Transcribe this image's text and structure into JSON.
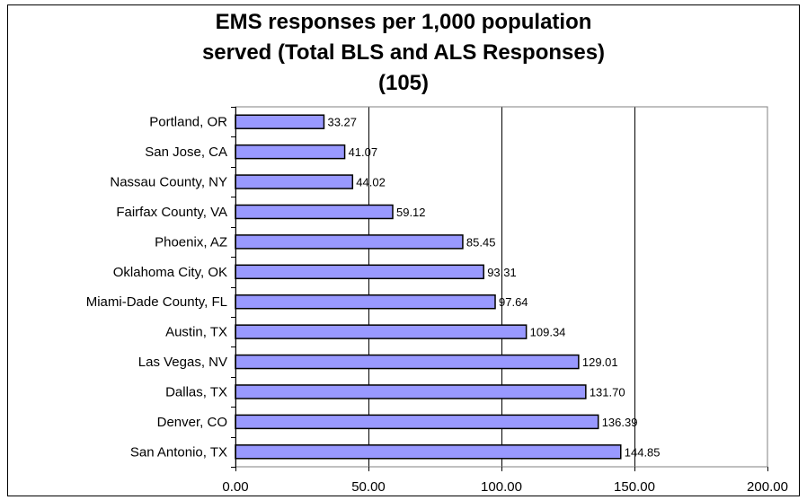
{
  "chart_data": {
    "type": "bar",
    "orientation": "horizontal",
    "title_lines": [
      "EMS responses per 1,000 population",
      "served (Total BLS and ALS Responses)",
      "(105)"
    ],
    "categories": [
      "Portland, OR",
      "San Jose, CA",
      "Nassau County, NY",
      "Fairfax County, VA",
      "Phoenix, AZ",
      "Oklahoma City, OK",
      "Miami-Dade County, FL",
      "Austin, TX",
      "Las Vegas, NV",
      "Dallas, TX",
      "Denver, CO",
      "San Antonio, TX"
    ],
    "values": [
      33.27,
      41.07,
      44.02,
      59.12,
      85.45,
      93.31,
      97.64,
      109.34,
      129.01,
      131.7,
      136.39,
      144.85
    ],
    "value_labels": [
      "33.27",
      "41.07",
      "44.02",
      "59.12",
      "85.45",
      "93.31",
      "97.64",
      "109.34",
      "129.01",
      "131.70",
      "136.39",
      "144.85"
    ],
    "x_ticks": [
      0,
      50,
      100,
      150,
      200
    ],
    "x_tick_labels": [
      "0.00",
      "50.00",
      "100.00",
      "150.00",
      "200.00"
    ],
    "xlim": [
      0,
      200
    ],
    "xlabel": "",
    "ylabel": "",
    "grid": "vertical major gridlines",
    "legend": "none",
    "colors": {
      "bar_fill": "#9999ff",
      "bar_stroke": "#000000",
      "plot_background": "#ffffff",
      "plot_border": "#808080",
      "gridline": "#000000",
      "text": "#000000"
    }
  }
}
